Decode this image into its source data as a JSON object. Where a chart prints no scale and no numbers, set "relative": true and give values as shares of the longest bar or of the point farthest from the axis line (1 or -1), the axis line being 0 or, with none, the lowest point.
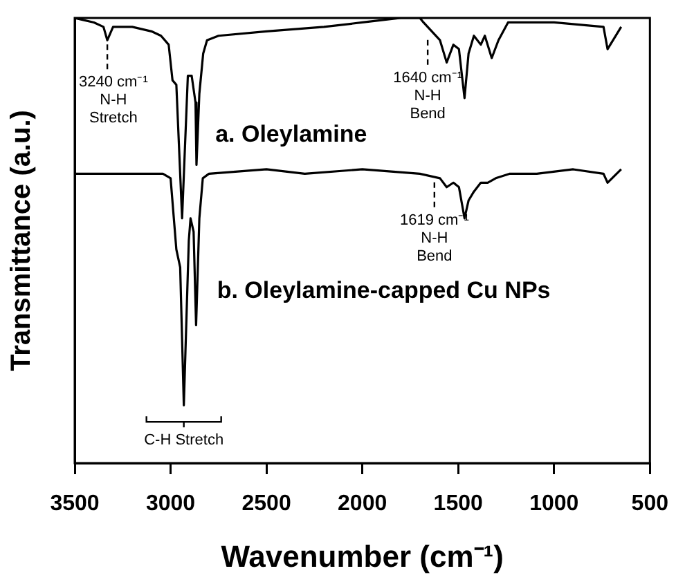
{
  "chart_data": {
    "type": "line",
    "relative": true,
    "xlabel": "Wavenumber (cm⁻¹)",
    "ylabel": "Transmittance (a.u.)",
    "xlim": [
      3500,
      500
    ],
    "xticks": [
      3500,
      3000,
      2500,
      2000,
      1500,
      1000,
      500
    ],
    "tick_labels": "x",
    "legend": false,
    "marker": "none",
    "line_style": "solid",
    "series": [
      {
        "name": "a. Oleylamine",
        "color": "#000000",
        "x": [
          3500,
          3400,
          3350,
          3330,
          3300,
          3200,
          3100,
          3050,
          3010,
          2990,
          2970,
          2940,
          2910,
          2890,
          2870,
          2865,
          2850,
          2830,
          2810,
          2750,
          2500,
          2200,
          2000,
          1800,
          1700,
          1681,
          1595,
          1560,
          1525,
          1496,
          1467,
          1446,
          1418,
          1382,
          1361,
          1325,
          1290,
          1240,
          1000,
          742,
          721,
          650
        ],
        "values": [
          1.0,
          0.99,
          0.98,
          0.95,
          0.98,
          0.98,
          0.97,
          0.96,
          0.94,
          0.86,
          0.85,
          0.55,
          0.87,
          0.87,
          0.81,
          0.67,
          0.83,
          0.92,
          0.95,
          0.96,
          0.97,
          0.98,
          0.99,
          1.0,
          1.0,
          0.99,
          0.95,
          0.9,
          0.94,
          0.93,
          0.82,
          0.92,
          0.96,
          0.94,
          0.96,
          0.91,
          0.95,
          0.99,
          0.99,
          0.98,
          0.93,
          0.98
        ]
      },
      {
        "name": "b. Oleylamine-capped Cu NPs",
        "color": "#000000",
        "x": [
          3500,
          3300,
          3100,
          3040,
          3000,
          2970,
          2950,
          2931,
          2905,
          2896,
          2880,
          2867,
          2850,
          2832,
          2800,
          2500,
          2300,
          2000,
          1700,
          1595,
          1560,
          1525,
          1496,
          1467,
          1446,
          1418,
          1382,
          1346,
          1304,
          1233,
          1090,
          900,
          742,
          721,
          650
        ],
        "values": [
          0.65,
          0.65,
          0.65,
          0.65,
          0.64,
          0.48,
          0.44,
          0.13,
          0.5,
          0.55,
          0.52,
          0.31,
          0.55,
          0.64,
          0.65,
          0.66,
          0.65,
          0.66,
          0.65,
          0.64,
          0.62,
          0.63,
          0.62,
          0.55,
          0.59,
          0.61,
          0.63,
          0.63,
          0.64,
          0.65,
          0.65,
          0.66,
          0.65,
          0.63,
          0.66
        ]
      }
    ],
    "annotations": [
      {
        "text": "3240 cm⁻¹\nN-H\nStretch",
        "x": 3330,
        "y": 0.95
      },
      {
        "text": "1640 cm⁻¹\nN-H\nBend",
        "x": 1659,
        "y": 0.96
      },
      {
        "text": "1619 cm⁻¹\nN-H\nBend",
        "x": 1624,
        "y": 0.64
      },
      "C-H Stretch"
    ]
  }
}
